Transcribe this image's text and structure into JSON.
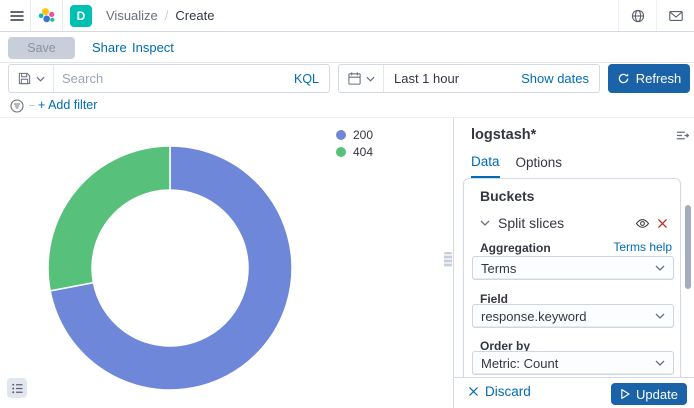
{
  "header": {
    "space_badge": "D",
    "breadcrumbs": [
      "Visualize",
      "Create"
    ],
    "breadcrumb_separator": "/"
  },
  "toolbar": {
    "save_label": "Save",
    "share_label": "Share",
    "inspect_label": "Inspect"
  },
  "query_bar": {
    "search_placeholder": "Search",
    "kql_label": "KQL",
    "time_range": "Last 1 hour",
    "show_dates_label": "Show dates",
    "refresh_label": "Refresh"
  },
  "filter_bar": {
    "add_filter_label": "+ Add filter"
  },
  "chart_data": {
    "type": "pie",
    "subtype": "donut",
    "legend_position": "top-right",
    "categories": [
      "200",
      "404"
    ],
    "values": [
      72,
      28
    ],
    "value_unit": "percent-estimated-from-arc-angles",
    "slices": [
      {
        "label": "200",
        "value": 72,
        "color": "#6F87D8"
      },
      {
        "label": "404",
        "value": 28,
        "color": "#57C17B"
      }
    ],
    "title": "",
    "inner_radius_ratio": 0.64
  },
  "editor": {
    "index_pattern": "logstash*",
    "tabs": [
      "Data",
      "Options"
    ],
    "buckets": {
      "title": "Buckets",
      "accordion_label": "Split slices",
      "aggregation_label": "Aggregation",
      "terms_help_label": "Terms help",
      "aggregation_value": "Terms",
      "field_label": "Field",
      "field_value": "response.keyword",
      "order_by_label": "Order by",
      "order_by_value": "Metric: Count"
    },
    "actions": {
      "discard_label": "Discard",
      "update_label": "Update"
    }
  },
  "colors": {
    "link_accent": "#006BB4",
    "primary_button": "#1A63A8",
    "space_badge": "#00BFB3",
    "danger": "#BD271E",
    "border": "#D3DAE6",
    "slice_200": "#6F87D8",
    "slice_404": "#57C17B"
  },
  "icons": {
    "names": [
      "menu-icon",
      "elastic-logo",
      "globe-icon",
      "envelope-icon",
      "floppy-disk-icon",
      "chevron-down-icon",
      "calendar-icon",
      "refresh-icon",
      "filter-icon",
      "eye-icon",
      "close-icon",
      "collapse-panel-icon",
      "play-icon",
      "legend-list-icon",
      "resize-grip"
    ]
  }
}
